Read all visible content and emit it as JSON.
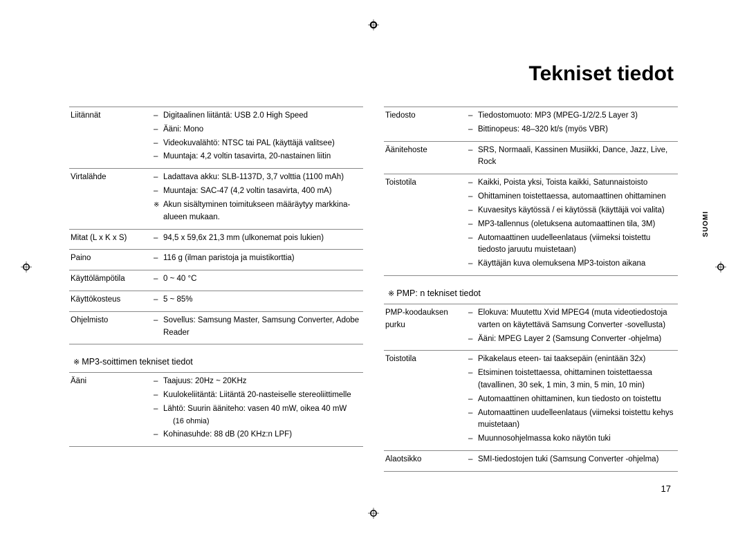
{
  "title": "Tekniset tiedot",
  "side_tab": "SUOMI",
  "page_number": "17",
  "left": {
    "rows": [
      {
        "label": "Liitännät",
        "items": [
          {
            "t": "Digitaalinen liitäntä: USB 2.0 High Speed"
          },
          {
            "t": "Ääni: Mono"
          },
          {
            "t": "Videokuvalähtö: NTSC tai PAL (käyttäjä valitsee)"
          },
          {
            "t": "Muuntaja: 4,2 voltin tasavirta, 20-nastainen liitin"
          }
        ]
      },
      {
        "label": "Virtalähde",
        "items": [
          {
            "t": "Ladattava akku: SLB-1137D, 3,7 volttia (1100 mAh)"
          },
          {
            "t": "Muuntaja: SAC-47 (4,2 voltin tasavirta, 400 mA)"
          },
          {
            "t": "Akun sisältyminen toimitukseen määräytyy markkina-alueen mukaan.",
            "note": true
          }
        ]
      },
      {
        "label": "Mitat (L x K x S)",
        "items": [
          {
            "t": "94,5 x 59,6x 21,3 mm (ulkonemat pois lukien)"
          }
        ]
      },
      {
        "label": "Paino",
        "items": [
          {
            "t": "116 g (ilman paristoja ja muistikorttia)"
          }
        ]
      },
      {
        "label": "Käyttölämpötila",
        "items": [
          {
            "t": "0 ~ 40 °C"
          }
        ]
      },
      {
        "label": "Käyttökosteus",
        "items": [
          {
            "t": "5 ~ 85%"
          }
        ]
      },
      {
        "label": "Ohjelmisto",
        "items": [
          {
            "t": "Sovellus: Samsung Master, Samsung Converter, Adobe Reader"
          }
        ]
      }
    ],
    "section_heading": "MP3-soittimen tekniset tiedot",
    "section_rows": [
      {
        "label": "Ääni",
        "items": [
          {
            "t": "Taajuus: 20Hz ~ 20KHz"
          },
          {
            "t": "Kuulokeliitäntä: Liitäntä 20-nasteiselle stereoliittimelle"
          },
          {
            "t": "Lähtö: Suurin ääniteho: vasen 40 mW, oikea 40 mW",
            "sub": "(16 ohmia)"
          },
          {
            "t": "Kohinasuhde: 88 dB (20 KHz:n LPF)"
          }
        ]
      }
    ]
  },
  "right": {
    "rows": [
      {
        "label": "Tiedosto",
        "items": [
          {
            "t": "Tiedostomuoto: MP3 (MPEG-1/2/2.5 Layer 3)"
          },
          {
            "t": "Bittinopeus: 48–320 kt/s (myös VBR)"
          }
        ]
      },
      {
        "label": "Äänitehoste",
        "items": [
          {
            "t": "SRS, Normaali, Kassinen Musiikki, Dance, Jazz, Live, Rock"
          }
        ]
      },
      {
        "label": "Toistotila",
        "items": [
          {
            "t": "Kaikki, Poista yksi, Toista kaikki, Satunnaistoisto"
          },
          {
            "t": "Ohittaminen toistettaessa, automaattinen ohittaminen"
          },
          {
            "t": "Kuvaesitys käytössä / ei käytössä (käyttäjä voi valita)"
          },
          {
            "t": "MP3-tallennus (oletuksena automaattinen tila, 3M)"
          },
          {
            "t": "Automaattinen uudelleenlataus (viimeksi toistettu tiedosto jaruutu muistetaan)"
          },
          {
            "t": "Käyttäjän kuva olemuksena MP3-toiston aikana"
          }
        ]
      }
    ],
    "section_heading": "PMP: n tekniset tiedot",
    "section_rows": [
      {
        "label": "PMP-koodauksen purku",
        "items": [
          {
            "t": "Elokuva: Muutettu Xvid MPEG4 (muta videotiedostoja varten on käytettävä Samsung Converter -sovellusta)"
          },
          {
            "t": "Ääni: MPEG Layer 2 (Samsung Converter -ohjelma)"
          }
        ]
      },
      {
        "label": "Toistotila",
        "items": [
          {
            "t": "Pikakelaus eteen- tai taaksepäin (enintään 32x)"
          },
          {
            "t": "Etsiminen toistettaessa, ohittaminen toistettaessa (tavallinen, 30 sek, 1 min, 3 min, 5 min, 10 min)"
          },
          {
            "t": " Automaattinen ohittaminen, kun tiedosto on toistettu"
          },
          {
            "t": "Automaattinen uudelleenlataus (viimeksi toistettu kehys muistetaan)"
          },
          {
            "t": "Muunnosohjelmassa koko näytön tuki"
          }
        ]
      },
      {
        "label": "Alaotsikko",
        "items": [
          {
            "t": "SMI-tiedostojen tuki (Samsung Converter -ohjelma)"
          }
        ]
      }
    ]
  }
}
